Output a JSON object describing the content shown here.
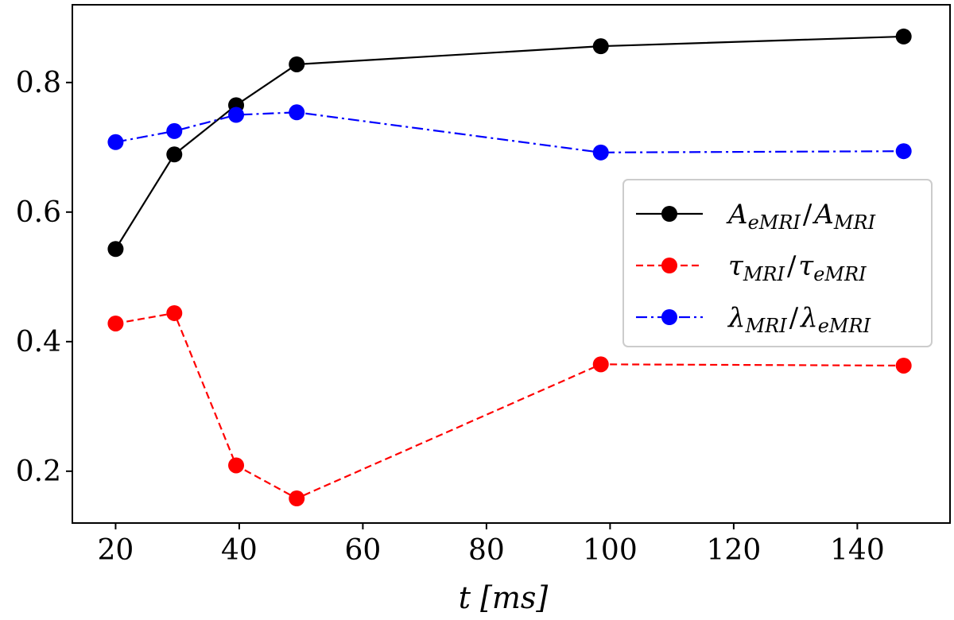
{
  "chart_data": {
    "type": "line",
    "title": "",
    "xlabel": "t [ms]",
    "ylabel": "",
    "xlim": [
      13,
      155
    ],
    "ylim": [
      0.12,
      0.92
    ],
    "xticks": [
      20,
      40,
      60,
      80,
      100,
      120,
      140
    ],
    "yticks": [
      0.2,
      0.4,
      0.6,
      0.8
    ],
    "xtick_labels": [
      "20",
      "40",
      "60",
      "80",
      "100",
      "120",
      "140"
    ],
    "ytick_labels": [
      "0.2",
      "0.4",
      "0.6",
      "0.8"
    ],
    "grid": false,
    "legend_position": "center-right",
    "series": [
      {
        "name": "A_eMRI / A_MRI",
        "color": "#000000",
        "linestyle": "solid",
        "x": [
          20,
          29.5,
          39.5,
          49.3,
          98.5,
          147.5
        ],
        "y": [
          0.543,
          0.689,
          0.765,
          0.828,
          0.856,
          0.871
        ]
      },
      {
        "name": "τ_MRI / τ_eMRI",
        "color": "#ff0000",
        "linestyle": "dashed",
        "x": [
          20,
          29.5,
          39.5,
          49.3,
          98.5,
          147.5
        ],
        "y": [
          0.428,
          0.444,
          0.209,
          0.158,
          0.365,
          0.363
        ]
      },
      {
        "name": "λ_MRI / λ_eMRI",
        "color": "#0000ff",
        "linestyle": "dashdot",
        "x": [
          20,
          29.5,
          39.5,
          49.3,
          98.5,
          147.5
        ],
        "y": [
          0.708,
          0.725,
          0.75,
          0.754,
          0.692,
          0.694
        ]
      }
    ],
    "legend": [
      {
        "main": "A",
        "sub": "eMRI",
        "sep": "/",
        "main2": "A",
        "sub2": "MRI"
      },
      {
        "main": "τ",
        "sub": "MRI",
        "sep": "/",
        "main2": "τ",
        "sub2": "eMRI"
      },
      {
        "main": "λ",
        "sub": "MRI",
        "sep": "/",
        "main2": "λ",
        "sub2": "eMRI"
      }
    ]
  }
}
